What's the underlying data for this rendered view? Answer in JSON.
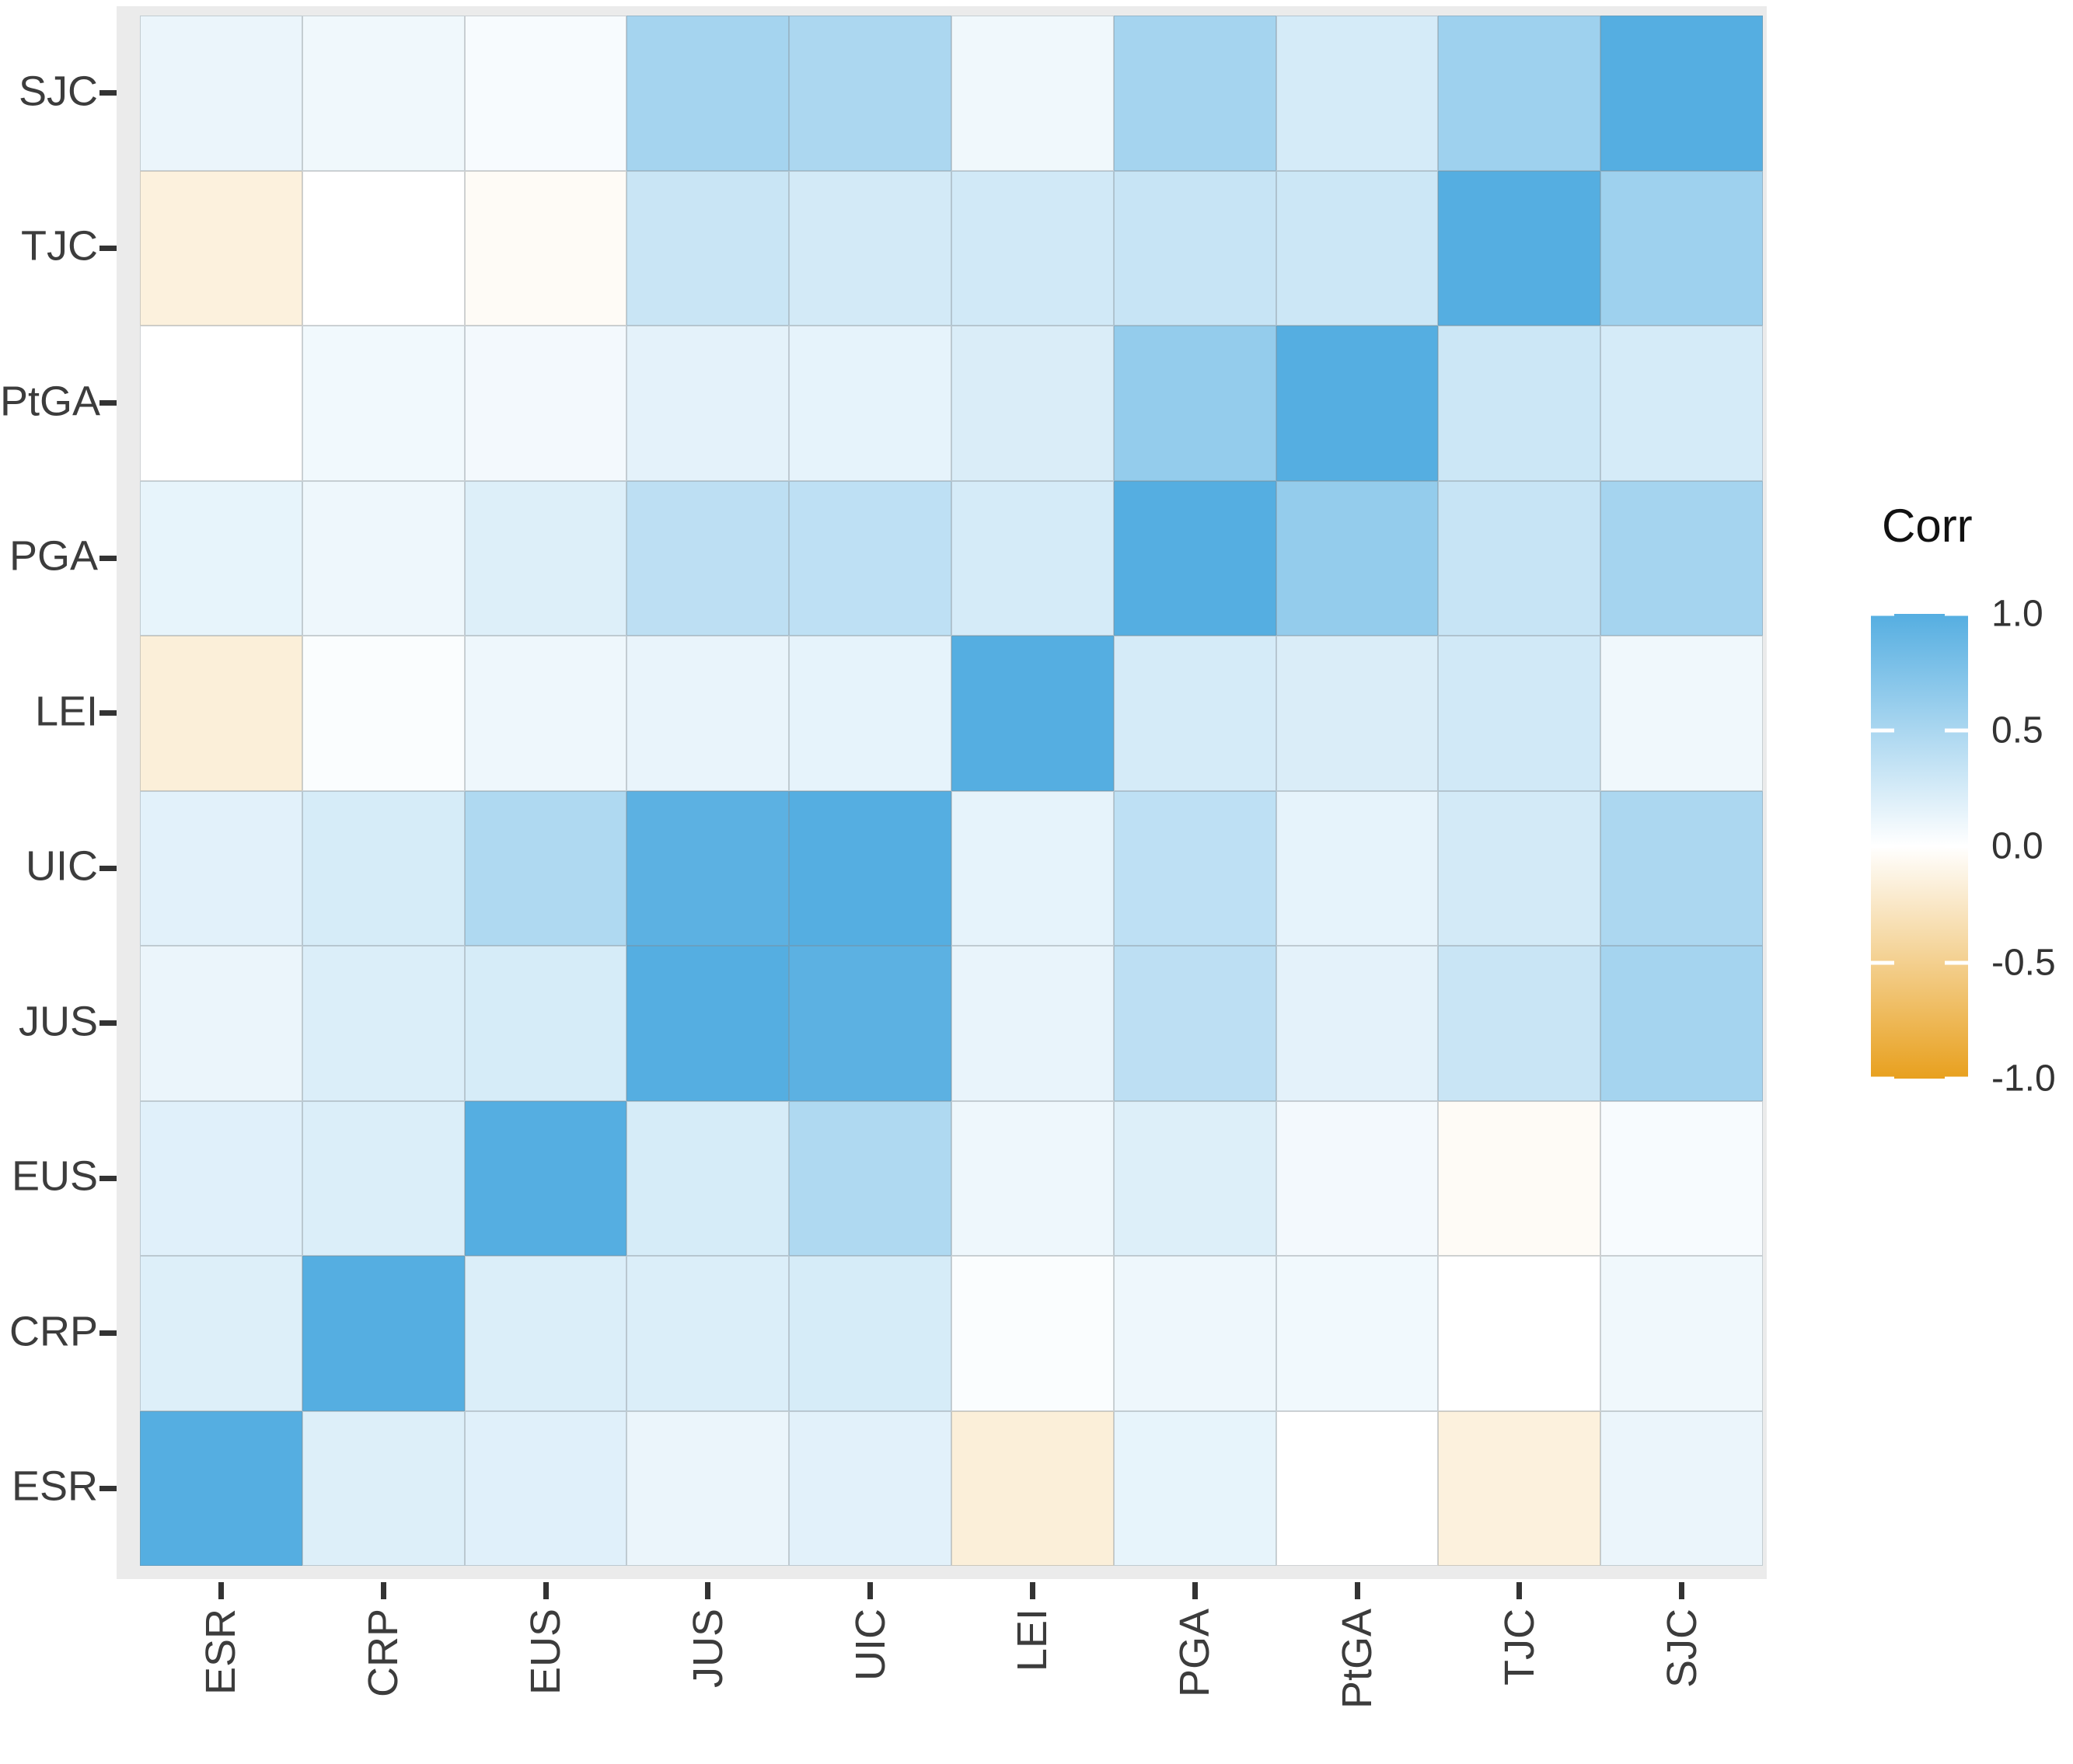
{
  "chart_data": {
    "type": "heatmap",
    "title": "",
    "x_categories": [
      "ESR",
      "CRP",
      "EUS",
      "JUS",
      "UIC",
      "LEI",
      "PGA",
      "PtGA",
      "TJC",
      "SJC"
    ],
    "y_categories": [
      "SJC",
      "TJC",
      "PtGA",
      "PGA",
      "LEI",
      "UIC",
      "JUS",
      "EUS",
      "CRP",
      "ESR"
    ],
    "values": [
      [
        0.12,
        0.09,
        0.05,
        0.53,
        0.49,
        0.09,
        0.53,
        0.25,
        0.57,
        1.0
      ],
      [
        -0.15,
        0.0,
        -0.04,
        0.32,
        0.26,
        0.27,
        0.33,
        0.3,
        1.0,
        0.57
      ],
      [
        0.0,
        0.08,
        0.07,
        0.16,
        0.15,
        0.22,
        0.63,
        1.0,
        0.3,
        0.25
      ],
      [
        0.14,
        0.1,
        0.2,
        0.39,
        0.38,
        0.25,
        1.0,
        0.63,
        0.33,
        0.53
      ],
      [
        -0.17,
        0.03,
        0.1,
        0.13,
        0.15,
        1.0,
        0.25,
        0.22,
        0.27,
        0.09
      ],
      [
        0.17,
        0.24,
        0.47,
        0.96,
        1.0,
        0.15,
        0.38,
        0.15,
        0.26,
        0.49
      ],
      [
        0.12,
        0.21,
        0.24,
        1.0,
        0.96,
        0.13,
        0.39,
        0.16,
        0.32,
        0.53
      ],
      [
        0.18,
        0.21,
        1.0,
        0.24,
        0.47,
        0.1,
        0.2,
        0.07,
        -0.04,
        0.05
      ],
      [
        0.2,
        1.0,
        0.21,
        0.21,
        0.24,
        0.03,
        0.1,
        0.08,
        0.0,
        0.09
      ],
      [
        1.0,
        0.2,
        0.18,
        0.12,
        0.17,
        -0.17,
        0.14,
        0.0,
        -0.15,
        0.12
      ]
    ],
    "legend": {
      "title": "Corr",
      "position": "right",
      "tick_labels": [
        "1.0",
        "0.5",
        "0.0",
        "-0.5",
        "-1.0"
      ],
      "tick_values": [
        1.0,
        0.5,
        0.0,
        -0.5,
        -1.0
      ],
      "range": [
        -1.0,
        1.0
      ]
    },
    "colorscale": {
      "high_color": "#55AEE1",
      "mid_color": "#FFFFFF",
      "low_color": "#E8A01E"
    },
    "layout_hints": {
      "grid": "off",
      "panel_background": "#EBEBEB",
      "cell_border_color": "#C9CDD0",
      "tick_color": "#333333",
      "axis_text_color": "#3C3C3C",
      "x_label_rotation_deg": 90
    }
  }
}
